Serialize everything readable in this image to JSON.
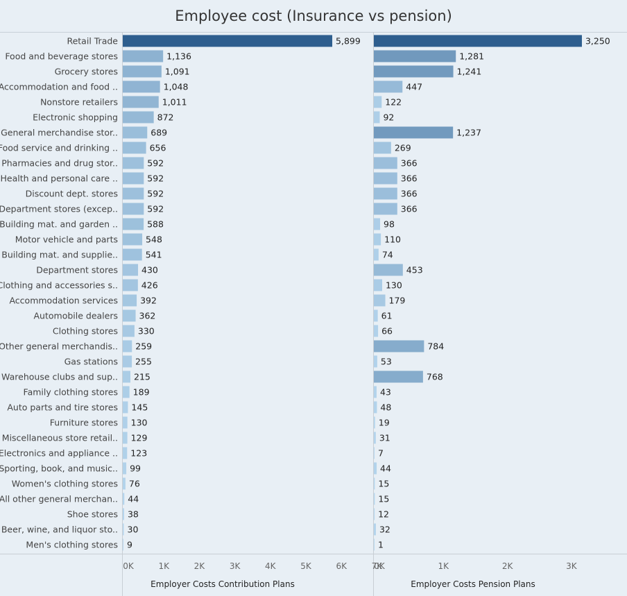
{
  "title": "Employee cost (Insurance vs pension)",
  "chart_data": {
    "type": "bar",
    "orientation": "horizontal",
    "categories": [
      "Retail Trade",
      "Food and beverage stores",
      "Grocery stores",
      "Accommodation and food ..",
      "Nonstore retailers",
      "Electronic shopping",
      "General merchandise stor..",
      "Food service and drinking ..",
      "Pharmacies and drug stor..",
      "Health and personal care ..",
      "Discount dept. stores",
      "Department stores (excep..",
      "Building mat. and garden ..",
      "Motor vehicle and parts",
      "Building mat. and supplie..",
      "Department stores",
      "Clothing and accessories s..",
      "Accommodation services",
      "Automobile dealers",
      "Clothing stores",
      "Other general merchandis..",
      "Gas stations",
      "Warehouse clubs and sup..",
      "Family clothing stores",
      "Auto parts and tire stores",
      "Furniture stores",
      "Miscellaneous store retail..",
      "Electronics and appliance ..",
      "Sporting, book, and music..",
      "Women's clothing stores",
      "All other general merchan..",
      "Shoe stores",
      "Beer, wine, and liquor sto..",
      "Men's clothing stores"
    ],
    "series": [
      {
        "name": "Employer Costs Contribution Plans",
        "values": [
          5899,
          1136,
          1091,
          1048,
          1011,
          872,
          689,
          656,
          592,
          592,
          592,
          592,
          588,
          548,
          541,
          430,
          426,
          392,
          362,
          330,
          259,
          255,
          215,
          189,
          145,
          130,
          129,
          123,
          99,
          76,
          44,
          38,
          30,
          9
        ],
        "value_labels": [
          "5,899",
          "1,136",
          "1,091",
          "1,048",
          "1,011",
          "872",
          "689",
          "656",
          "592",
          "592",
          "592",
          "592",
          "588",
          "548",
          "541",
          "430",
          "426",
          "392",
          "362",
          "330",
          "259",
          "255",
          "215",
          "189",
          "145",
          "130",
          "129",
          "123",
          "99",
          "76",
          "44",
          "38",
          "30",
          "9"
        ],
        "xlim": [
          0,
          7000
        ],
        "ticks": [
          "0K",
          "1K",
          "2K",
          "3K",
          "4K",
          "5K",
          "6K",
          "7K"
        ]
      },
      {
        "name": "Employer Costs Pension Plans",
        "values": [
          3250,
          1281,
          1241,
          447,
          122,
          92,
          1237,
          269,
          366,
          366,
          366,
          366,
          98,
          110,
          74,
          453,
          130,
          179,
          61,
          66,
          784,
          53,
          768,
          43,
          48,
          19,
          31,
          7,
          44,
          15,
          15,
          12,
          32,
          1
        ],
        "value_labels": [
          "3,250",
          "1,281",
          "1,241",
          "447",
          "122",
          "92",
          "1,237",
          "269",
          "366",
          "366",
          "366",
          "366",
          "98",
          "110",
          "74",
          "453",
          "130",
          "179",
          "61",
          "66",
          "784",
          "53",
          "768",
          "43",
          "48",
          "19",
          "31",
          "7",
          "44",
          "15",
          "15",
          "12",
          "32",
          "1"
        ],
        "xlim": [
          0,
          3900
        ],
        "ticks": [
          "0K",
          "1K",
          "2K",
          "3K"
        ]
      }
    ],
    "color_scale": [
      "#b9d9f0",
      "#2e5e8e"
    ],
    "grid": false
  }
}
